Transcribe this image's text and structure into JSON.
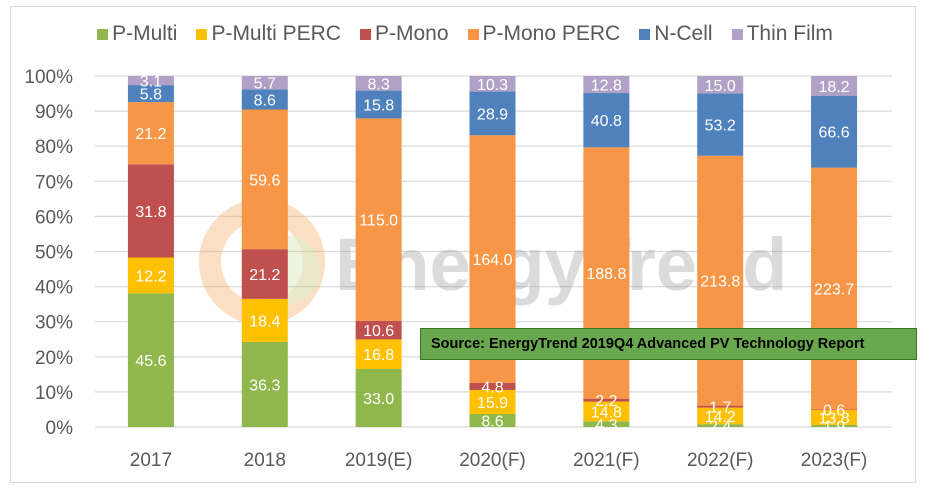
{
  "chart_data": {
    "type": "bar",
    "stacked": "percent",
    "title": "",
    "xlabel": "",
    "ylabel": "",
    "ylim": [
      0,
      100
    ],
    "yticks": [
      "0%",
      "10%",
      "20%",
      "30%",
      "40%",
      "50%",
      "60%",
      "70%",
      "80%",
      "90%",
      "100%"
    ],
    "grid": true,
    "legend_position": "top",
    "categories": [
      "2017",
      "2018",
      "2019(E)",
      "2020(F)",
      "2021(F)",
      "2022(F)",
      "2023(F)"
    ],
    "series": [
      {
        "name": "P-Multi",
        "color": "#8fb74b",
        "values": [
          45.6,
          36.3,
          33.0,
          8.6,
          4.3,
          2.4,
          1.9
        ]
      },
      {
        "name": "P-Multi PERC",
        "color": "#ffc000",
        "values": [
          12.2,
          18.4,
          16.8,
          15.9,
          14.8,
          14.2,
          13.8
        ]
      },
      {
        "name": "P-Mono",
        "color": "#c0504d",
        "values": [
          31.8,
          21.2,
          10.6,
          4.8,
          2.2,
          1.7,
          0.6
        ]
      },
      {
        "name": "P-Mono PERC",
        "color": "#f79646",
        "values": [
          21.2,
          59.6,
          115.0,
          164.0,
          188.8,
          213.8,
          223.7
        ]
      },
      {
        "name": "N-Cell",
        "color": "#4f81bd",
        "values": [
          5.8,
          8.6,
          15.8,
          28.9,
          40.8,
          53.2,
          66.6
        ]
      },
      {
        "name": "Thin Film",
        "color": "#b2a1c7",
        "values": [
          3.1,
          5.7,
          8.3,
          10.3,
          12.8,
          15.0,
          18.2
        ]
      }
    ]
  },
  "watermark": "EnergyTrend",
  "source_note": "Source: EnergyTrend 2019Q4 Advanced PV Technology Report"
}
